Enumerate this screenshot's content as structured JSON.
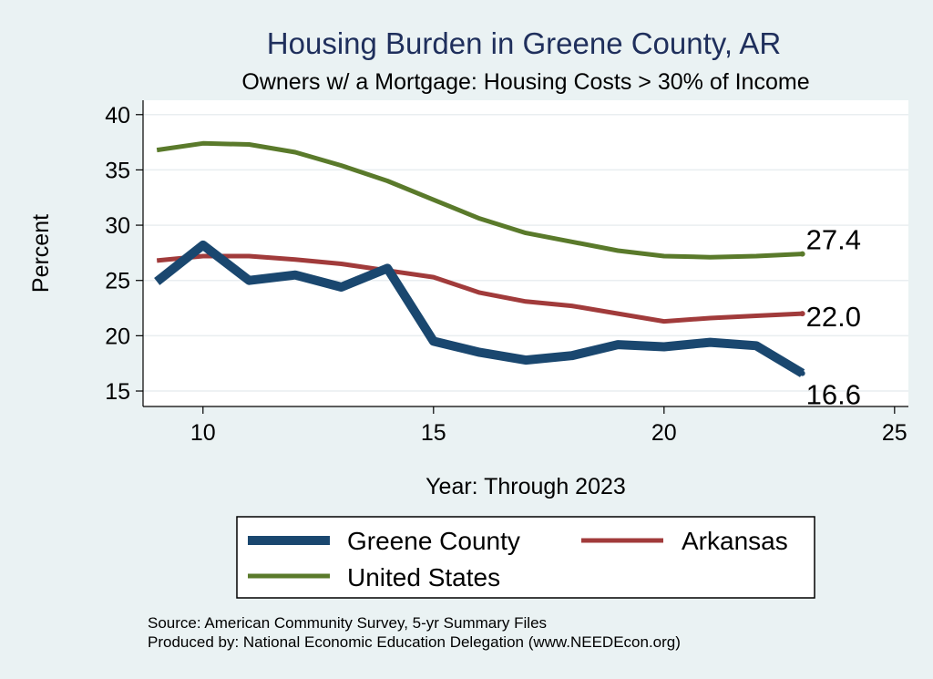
{
  "chart_data": {
    "type": "line",
    "title": "Housing Burden in Greene County, AR",
    "subtitle": "Owners w/ a Mortgage: Housing Costs > 30% of Income",
    "xlabel": "Year: Through 2023",
    "ylabel": "Percent",
    "xlim": [
      8.7,
      25.3
    ],
    "ylim": [
      13.6,
      41.3
    ],
    "xticks": [
      10,
      15,
      20,
      25
    ],
    "yticks": [
      15,
      20,
      25,
      30,
      35,
      40
    ],
    "grid": true,
    "legend_position": "bottom",
    "series": [
      {
        "name": "Greene County",
        "color": "#1a476f",
        "width": "thick",
        "end_label": "16.6",
        "x": [
          9,
          10,
          11,
          12,
          13,
          14,
          15,
          16,
          17,
          18,
          19,
          20,
          21,
          22,
          23
        ],
        "y": [
          24.9,
          28.2,
          25.0,
          25.5,
          24.4,
          26.1,
          19.5,
          18.5,
          17.8,
          18.2,
          19.2,
          19.0,
          19.4,
          19.1,
          16.6
        ]
      },
      {
        "name": "Arkansas",
        "color": "#a13b3b",
        "width": "medium",
        "end_label": "22.0",
        "x": [
          9,
          10,
          11,
          12,
          13,
          14,
          15,
          16,
          17,
          18,
          19,
          20,
          21,
          22,
          23
        ],
        "y": [
          26.8,
          27.2,
          27.2,
          26.9,
          26.5,
          25.9,
          25.3,
          23.9,
          23.1,
          22.7,
          22.0,
          21.3,
          21.6,
          21.8,
          22.0
        ]
      },
      {
        "name": "United States",
        "color": "#5a7a2b",
        "width": "medium",
        "end_label": "27.4",
        "x": [
          9,
          10,
          11,
          12,
          13,
          14,
          15,
          16,
          17,
          18,
          19,
          20,
          21,
          22,
          23
        ],
        "y": [
          36.8,
          37.4,
          37.3,
          36.6,
          35.4,
          34.0,
          32.3,
          30.6,
          29.3,
          28.5,
          27.7,
          27.2,
          27.1,
          27.2,
          27.4
        ]
      }
    ]
  },
  "legend": {
    "items": [
      "Greene County",
      "Arkansas",
      "United States"
    ]
  },
  "source": {
    "line1": "Source: American Community Survey, 5-yr Summary Files",
    "line2": "Produced by: National Economic Education Delegation (www.NEEDEcon.org)"
  }
}
